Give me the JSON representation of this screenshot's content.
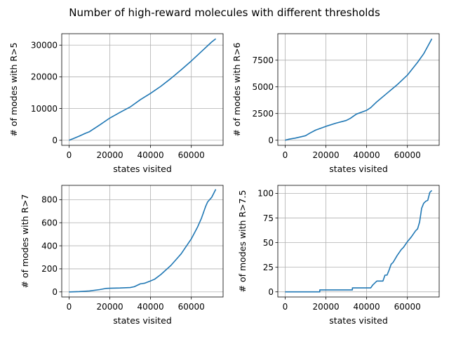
{
  "figure": {
    "title": "Number of high-reward molecules with different thresholds"
  },
  "colors": {
    "series": "#1f77b4",
    "grid": "#b0b0b0"
  },
  "chart_data": [
    {
      "type": "line",
      "xlabel": "states visited",
      "ylabel": "# of modes with R>5",
      "xlim": [
        -3600,
        75600
      ],
      "ylim": [
        -1600,
        33600
      ],
      "xticks": [
        0,
        20000,
        40000,
        60000
      ],
      "yticks": [
        0,
        10000,
        20000,
        30000
      ],
      "grid": true,
      "x": [
        0,
        2000,
        5000,
        8000,
        10000,
        15000,
        20000,
        25000,
        30000,
        35000,
        40000,
        45000,
        50000,
        55000,
        60000,
        65000,
        70000,
        72000
      ],
      "y": [
        0,
        500,
        1300,
        2200,
        2700,
        4800,
        7000,
        8800,
        10500,
        12800,
        14800,
        17000,
        19500,
        22200,
        25000,
        28000,
        31000,
        32000
      ]
    },
    {
      "type": "line",
      "xlabel": "states visited",
      "ylabel": "# of modes with R>6",
      "xlim": [
        -3600,
        75600
      ],
      "ylim": [
        -480,
        9980
      ],
      "xticks": [
        0,
        20000,
        40000,
        60000
      ],
      "yticks": [
        0,
        2500,
        5000,
        7500
      ],
      "grid": true,
      "x": [
        0,
        2000,
        5000,
        8000,
        10000,
        12000,
        15000,
        20000,
        25000,
        30000,
        32000,
        35000,
        40000,
        42000,
        45000,
        50000,
        55000,
        60000,
        65000,
        68000,
        72000
      ],
      "y": [
        0,
        100,
        200,
        330,
        420,
        650,
        950,
        1300,
        1600,
        1850,
        2050,
        2450,
        2800,
        3050,
        3600,
        4400,
        5200,
        6100,
        7300,
        8100,
        9500
      ]
    },
    {
      "type": "line",
      "xlabel": "states visited",
      "ylabel": "# of modes with R>7",
      "xlim": [
        -3600,
        75600
      ],
      "ylim": [
        -44,
        924
      ],
      "xticks": [
        0,
        20000,
        40000,
        60000
      ],
      "yticks": [
        0,
        200,
        400,
        600,
        800
      ],
      "grid": true,
      "x": [
        0,
        5000,
        10000,
        15000,
        18000,
        20000,
        25000,
        30000,
        32000,
        35000,
        37000,
        40000,
        42000,
        45000,
        50000,
        55000,
        60000,
        63000,
        65000,
        67000,
        68000,
        70000,
        72000
      ],
      "y": [
        0,
        3,
        8,
        20,
        30,
        32,
        34,
        38,
        45,
        70,
        75,
        95,
        110,
        150,
        230,
        330,
        460,
        560,
        640,
        740,
        780,
        820,
        890
      ]
    },
    {
      "type": "line",
      "xlabel": "states visited",
      "ylabel": "# of modes with R>7.5",
      "xlim": [
        -3600,
        75600
      ],
      "ylim": [
        -5.2,
        108.2
      ],
      "xticks": [
        0,
        20000,
        40000,
        60000
      ],
      "yticks": [
        0,
        25,
        50,
        75,
        100
      ],
      "grid": true,
      "x": [
        0,
        10000,
        15000,
        17000,
        17000,
        33000,
        33000,
        42000,
        43000,
        45000,
        48000,
        49000,
        50000,
        51000,
        52000,
        53000,
        55000,
        57000,
        58000,
        60000,
        62000,
        64000,
        65000,
        66000,
        67000,
        68000,
        69000,
        70000,
        71000,
        72000
      ],
      "y": [
        0,
        0,
        0,
        0,
        2,
        2,
        4,
        4,
        7,
        11,
        11,
        17,
        17,
        22,
        28,
        30,
        37,
        43,
        45,
        51,
        56,
        62,
        64,
        71,
        85,
        90,
        92,
        93,
        101,
        103
      ]
    }
  ]
}
